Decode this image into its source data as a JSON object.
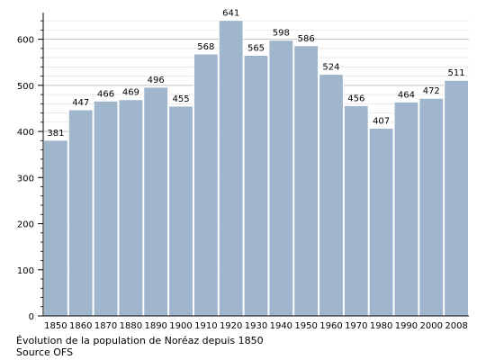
{
  "chart_data": {
    "type": "bar",
    "categories": [
      "1850",
      "1860",
      "1870",
      "1880",
      "1890",
      "1900",
      "1910",
      "1920",
      "1930",
      "1940",
      "1950",
      "1960",
      "1970",
      "1980",
      "1990",
      "2000",
      "2008"
    ],
    "values": [
      381,
      447,
      466,
      469,
      496,
      455,
      568,
      641,
      565,
      598,
      586,
      524,
      456,
      407,
      464,
      472,
      511
    ],
    "ylim": [
      0,
      650
    ],
    "yticks": [
      0,
      100,
      200,
      300,
      400,
      500,
      600
    ],
    "grid": true,
    "bar_color": "#9fb6cd",
    "bar_edge_color": "#ffffff",
    "grid_color": "#b0b0b0"
  },
  "caption": {
    "line1": "Évolution de la population de Noréaz depuis 1850",
    "line2": "Source OFS"
  }
}
